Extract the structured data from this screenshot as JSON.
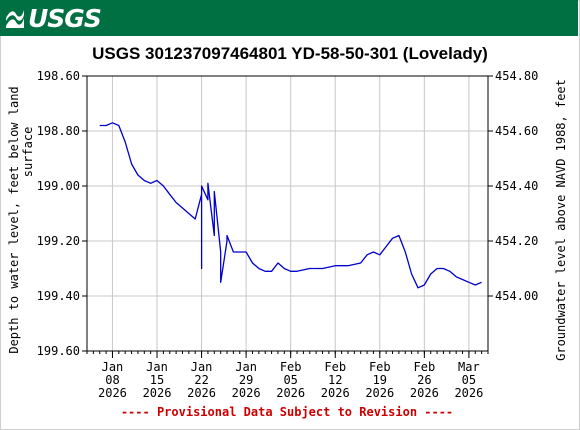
{
  "banner": {
    "logo_text": "USGS",
    "color": "#006f41"
  },
  "chart_data": {
    "type": "line",
    "title": "USGS 301237097464801 YD-58-50-301 (Lovelady)",
    "ylabel": "Depth to water level, feet below land surface",
    "ylabel_lines": [
      "Depth to water level, feet below land",
      "surface"
    ],
    "ylabel_right": "Groundwater level above NAVD 1988, feet",
    "ylim": [
      199.6,
      198.6
    ],
    "y_inverted": true,
    "yticks": [
      "198.60",
      "198.80",
      "199.00",
      "199.20",
      "199.40",
      "199.60"
    ],
    "yticks_right": [
      "454.80",
      "454.60",
      "454.40",
      "454.20",
      "454.00"
    ],
    "xlim": [
      "2026-01-04",
      "2026-03-08"
    ],
    "xticks": [
      {
        "date": "2026-01-08",
        "lines": [
          "Jan",
          "08",
          "2026"
        ]
      },
      {
        "date": "2026-01-15",
        "lines": [
          "Jan",
          "15",
          "2026"
        ]
      },
      {
        "date": "2026-01-22",
        "lines": [
          "Jan",
          "22",
          "2026"
        ]
      },
      {
        "date": "2026-01-29",
        "lines": [
          "Jan",
          "29",
          "2026"
        ]
      },
      {
        "date": "2026-02-05",
        "lines": [
          "Feb",
          "05",
          "2026"
        ]
      },
      {
        "date": "2026-02-12",
        "lines": [
          "Feb",
          "12",
          "2026"
        ]
      },
      {
        "date": "2026-02-19",
        "lines": [
          "Feb",
          "19",
          "2026"
        ]
      },
      {
        "date": "2026-02-26",
        "lines": [
          "Feb",
          "26",
          "2026"
        ]
      },
      {
        "date": "2026-03-05",
        "lines": [
          "Mar",
          "05",
          "2026"
        ]
      }
    ],
    "grid": true,
    "footnote": "---- Provisional Data Subject to Revision ----",
    "colors": {
      "series": "#0000cc",
      "footnote": "#cc0000",
      "grid": "#c8c8c8"
    },
    "series": [
      {
        "x": [
          "2026-01-06",
          "2026-01-07",
          "2026-01-08",
          "2026-01-09",
          "2026-01-10",
          "2026-01-11",
          "2026-01-12",
          "2026-01-13",
          "2026-01-14",
          "2026-01-15",
          "2026-01-16",
          "2026-01-17",
          "2026-01-18",
          "2026-01-19",
          "2026-01-20",
          "2026-01-21",
          "2026-01-22",
          "2026-01-22",
          "2026-01-22",
          "2026-01-23",
          "2026-01-23",
          "2026-01-24",
          "2026-01-24",
          "2026-01-25",
          "2026-01-25",
          "2026-01-26",
          "2026-01-26",
          "2026-01-27",
          "2026-01-28",
          "2026-01-29",
          "2026-01-30",
          "2026-01-31",
          "2026-02-01",
          "2026-02-02",
          "2026-02-03",
          "2026-02-04",
          "2026-02-05",
          "2026-02-06",
          "2026-02-08",
          "2026-02-10",
          "2026-02-12",
          "2026-02-14",
          "2026-02-16",
          "2026-02-17",
          "2026-02-18",
          "2026-02-19",
          "2026-02-20",
          "2026-02-21",
          "2026-02-22",
          "2026-02-23",
          "2026-02-24",
          "2026-02-25",
          "2026-02-26",
          "2026-02-27",
          "2026-02-28",
          "2026-03-01",
          "2026-03-02",
          "2026-03-03",
          "2026-03-04",
          "2026-03-05",
          "2026-03-06",
          "2026-03-07"
        ],
        "y": [
          198.78,
          198.78,
          198.77,
          198.78,
          198.84,
          198.92,
          198.96,
          198.98,
          198.99,
          198.98,
          199.0,
          199.03,
          199.06,
          199.08,
          199.1,
          199.12,
          199.03,
          199.3,
          199.0,
          199.05,
          198.99,
          199.18,
          199.02,
          199.24,
          199.35,
          199.2,
          199.18,
          199.24,
          199.24,
          199.24,
          199.28,
          199.3,
          199.31,
          199.31,
          199.28,
          199.3,
          199.31,
          199.31,
          199.3,
          199.3,
          199.29,
          199.29,
          199.28,
          199.25,
          199.24,
          199.25,
          199.22,
          199.19,
          199.18,
          199.24,
          199.32,
          199.37,
          199.36,
          199.32,
          199.3,
          199.3,
          199.31,
          199.33,
          199.34,
          199.35,
          199.36,
          199.35
        ]
      }
    ]
  }
}
